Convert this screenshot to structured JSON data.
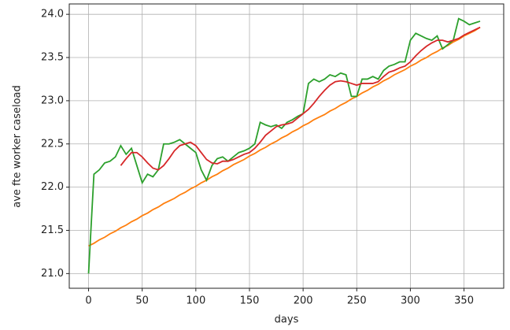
{
  "chart_data": {
    "type": "line",
    "xlabel": "days",
    "ylabel": "ave fte worker caseload",
    "xlim": [
      -18,
      387
    ],
    "ylim": [
      20.83,
      24.12
    ],
    "xticks": [
      0,
      50,
      100,
      150,
      200,
      250,
      300,
      350
    ],
    "yticks": [
      {
        "value": 21,
        "label": "21.0"
      },
      {
        "value": 21.5,
        "label": "21.5"
      },
      {
        "value": 22,
        "label": "22.0"
      },
      {
        "value": 22.5,
        "label": "22.5"
      },
      {
        "value": 23,
        "label": "23.0"
      },
      {
        "value": 23.5,
        "label": "23.5"
      },
      {
        "value": 24,
        "label": "24.0"
      }
    ],
    "grid": true,
    "x": [
      0,
      5,
      10,
      15,
      20,
      25,
      30,
      35,
      40,
      45,
      50,
      55,
      60,
      65,
      70,
      75,
      80,
      85,
      90,
      95,
      100,
      105,
      110,
      115,
      120,
      125,
      130,
      135,
      140,
      145,
      150,
      155,
      160,
      165,
      170,
      175,
      180,
      185,
      190,
      195,
      200,
      205,
      210,
      215,
      220,
      225,
      230,
      235,
      240,
      245,
      250,
      255,
      260,
      265,
      270,
      275,
      280,
      285,
      290,
      295,
      300,
      305,
      310,
      315,
      320,
      325,
      330,
      335,
      340,
      345,
      350,
      355,
      360,
      365
    ],
    "series": [
      {
        "color": "#ff7f0e",
        "values": [
          21.32,
          21.35,
          21.39,
          21.42,
          21.46,
          21.49,
          21.53,
          21.56,
          21.6,
          21.63,
          21.67,
          21.7,
          21.74,
          21.77,
          21.81,
          21.84,
          21.87,
          21.91,
          21.94,
          21.98,
          22.01,
          22.05,
          22.08,
          22.12,
          22.15,
          22.19,
          22.22,
          22.26,
          22.29,
          22.32,
          22.36,
          22.39,
          22.43,
          22.46,
          22.5,
          22.53,
          22.57,
          22.6,
          22.64,
          22.67,
          22.71,
          22.74,
          22.78,
          22.81,
          22.84,
          22.88,
          22.91,
          22.95,
          22.98,
          23.02,
          23.05,
          23.09,
          23.12,
          23.16,
          23.19,
          23.23,
          23.26,
          23.3,
          23.33,
          23.36,
          23.4,
          23.43,
          23.47,
          23.5,
          23.54,
          23.57,
          23.61,
          23.64,
          23.68,
          23.71,
          23.75,
          23.78,
          23.81,
          23.85
        ]
      },
      {
        "color": "#2ca02c",
        "values": [
          21.0,
          22.15,
          22.2,
          22.28,
          22.3,
          22.35,
          22.48,
          22.38,
          22.45,
          22.25,
          22.05,
          22.15,
          22.12,
          22.2,
          22.5,
          22.5,
          22.52,
          22.55,
          22.5,
          22.45,
          22.4,
          22.2,
          22.08,
          22.25,
          22.33,
          22.35,
          22.3,
          22.35,
          22.4,
          22.42,
          22.45,
          22.5,
          22.75,
          22.72,
          22.7,
          22.72,
          22.68,
          22.75,
          22.78,
          22.82,
          22.85,
          23.2,
          23.25,
          23.22,
          23.25,
          23.3,
          23.28,
          23.32,
          23.3,
          23.05,
          23.05,
          23.25,
          23.25,
          23.28,
          23.25,
          23.35,
          23.4,
          23.42,
          23.45,
          23.45,
          23.7,
          23.78,
          23.75,
          23.72,
          23.7,
          23.75,
          23.6,
          23.65,
          23.7,
          23.95,
          23.92,
          23.88,
          23.9,
          23.92
        ]
      },
      {
        "color": "#d62728",
        "values": [
          null,
          null,
          null,
          null,
          null,
          null,
          22.25,
          22.33,
          22.4,
          22.4,
          22.35,
          22.28,
          22.22,
          22.2,
          22.25,
          22.33,
          22.42,
          22.48,
          22.5,
          22.52,
          22.48,
          22.4,
          22.32,
          22.28,
          22.27,
          22.3,
          22.3,
          22.32,
          22.35,
          22.38,
          22.4,
          22.45,
          22.52,
          22.6,
          22.65,
          22.7,
          22.72,
          22.73,
          22.75,
          22.8,
          22.85,
          22.9,
          22.97,
          23.05,
          23.12,
          23.18,
          23.22,
          23.23,
          23.22,
          23.2,
          23.18,
          23.2,
          23.2,
          23.2,
          23.22,
          23.28,
          23.33,
          23.35,
          23.38,
          23.4,
          23.45,
          23.52,
          23.58,
          23.63,
          23.67,
          23.7,
          23.7,
          23.68,
          23.7,
          23.72,
          23.76,
          23.79,
          23.82,
          23.85
        ]
      }
    ]
  }
}
